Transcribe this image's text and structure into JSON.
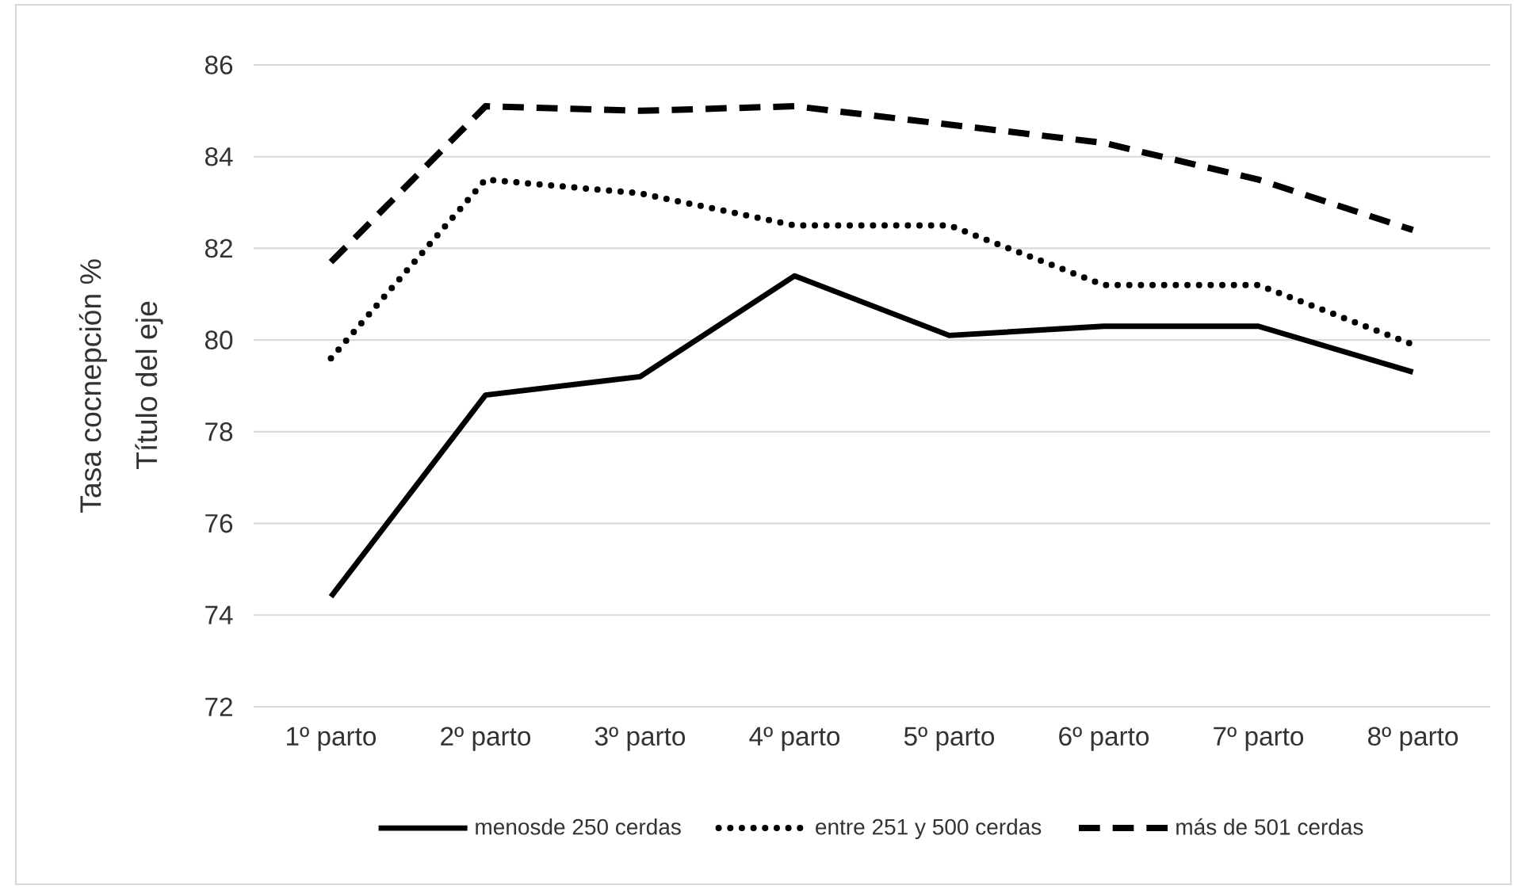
{
  "chart_data": {
    "type": "line",
    "ylabel": "Tasa cocnepción %",
    "annotations": [
      "Título del eje"
    ],
    "categories": [
      "1º parto",
      "2º parto",
      "3º parto",
      "4º parto",
      "5º parto",
      "6º parto",
      "7º parto",
      "8º parto"
    ],
    "series": [
      {
        "name": "menosde 250 cerdas",
        "color": "#000000",
        "line_style": "solid",
        "values": [
          74.4,
          78.8,
          79.2,
          81.4,
          80.1,
          80.3,
          80.3,
          79.3
        ]
      },
      {
        "name": "entre 251 y 500 cerdas",
        "color": "#000000",
        "line_style": "dotted",
        "values": [
          79.6,
          83.5,
          83.2,
          82.5,
          82.5,
          81.2,
          81.2,
          79.9
        ]
      },
      {
        "name": "más de 501 cerdas",
        "color": "#000000",
        "line_style": "dashed",
        "values": [
          81.7,
          85.1,
          85.0,
          85.1,
          84.7,
          84.3,
          83.5,
          82.4
        ]
      }
    ],
    "ylim": [
      72,
      86
    ],
    "yticks": [
      72,
      74,
      76,
      78,
      80,
      82,
      84,
      86
    ],
    "grid": "y",
    "legend": "bottom",
    "marker": "none"
  }
}
